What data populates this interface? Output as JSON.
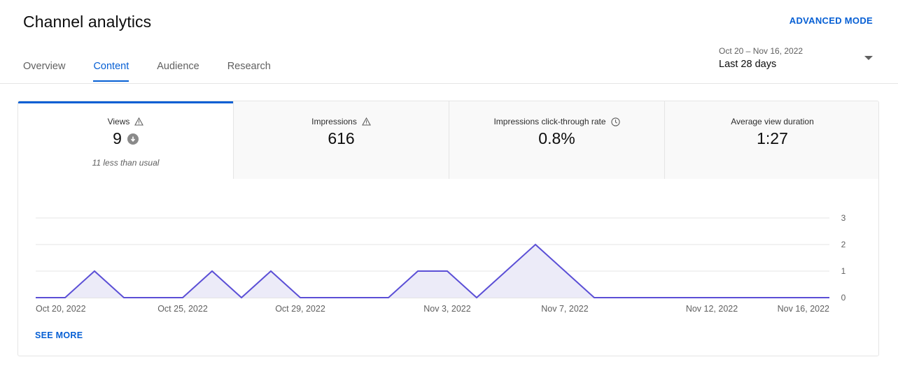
{
  "header": {
    "title": "Channel analytics",
    "advanced_mode": "ADVANCED MODE"
  },
  "tabs": [
    {
      "label": "Overview"
    },
    {
      "label": "Content",
      "active": true
    },
    {
      "label": "Audience"
    },
    {
      "label": "Research"
    }
  ],
  "date_picker": {
    "range": "Oct 20 – Nov 16, 2022",
    "label": "Last 28 days"
  },
  "metrics": [
    {
      "label": "Views",
      "value": "9",
      "note": "11 less than usual",
      "icon": "warning-icon",
      "value_icon": "arrow-down-circle-icon"
    },
    {
      "label": "Impressions",
      "value": "616",
      "icon": "warning-icon"
    },
    {
      "label": "Impressions click-through rate",
      "value": "0.8%",
      "icon": "clock-icon"
    },
    {
      "label": "Average view duration",
      "value": "1:27"
    }
  ],
  "see_more": "SEE MORE",
  "colors": {
    "accent": "#065fd4",
    "line": "#5b4fd6",
    "area": "#ecebf8",
    "grid": "#e5e5e5"
  },
  "chart_data": {
    "type": "area",
    "x": [
      "Oct 20, 2022",
      "Oct 21, 2022",
      "Oct 22, 2022",
      "Oct 23, 2022",
      "Oct 24, 2022",
      "Oct 25, 2022",
      "Oct 26, 2022",
      "Oct 27, 2022",
      "Oct 28, 2022",
      "Oct 29, 2022",
      "Oct 30, 2022",
      "Oct 31, 2022",
      "Nov 1, 2022",
      "Nov 2, 2022",
      "Nov 3, 2022",
      "Nov 4, 2022",
      "Nov 5, 2022",
      "Nov 6, 2022",
      "Nov 7, 2022",
      "Nov 8, 2022",
      "Nov 9, 2022",
      "Nov 10, 2022",
      "Nov 11, 2022",
      "Nov 12, 2022",
      "Nov 13, 2022",
      "Nov 14, 2022",
      "Nov 15, 2022",
      "Nov 16, 2022"
    ],
    "values": [
      0,
      0,
      1,
      0,
      0,
      0,
      1,
      0,
      1,
      0,
      0,
      0,
      0,
      1,
      1,
      0,
      1,
      2,
      1,
      0,
      0,
      0,
      0,
      0,
      0,
      0,
      0,
      0
    ],
    "x_tick_labels": [
      "Oct 20, 2022",
      "Oct 25, 2022",
      "Oct 29, 2022",
      "Nov 3, 2022",
      "Nov 7, 2022",
      "Nov 12, 2022",
      "Nov 16, 2022"
    ],
    "y_ticks": [
      0,
      1,
      2,
      3
    ],
    "ylim": [
      0,
      3
    ],
    "grid": true
  }
}
